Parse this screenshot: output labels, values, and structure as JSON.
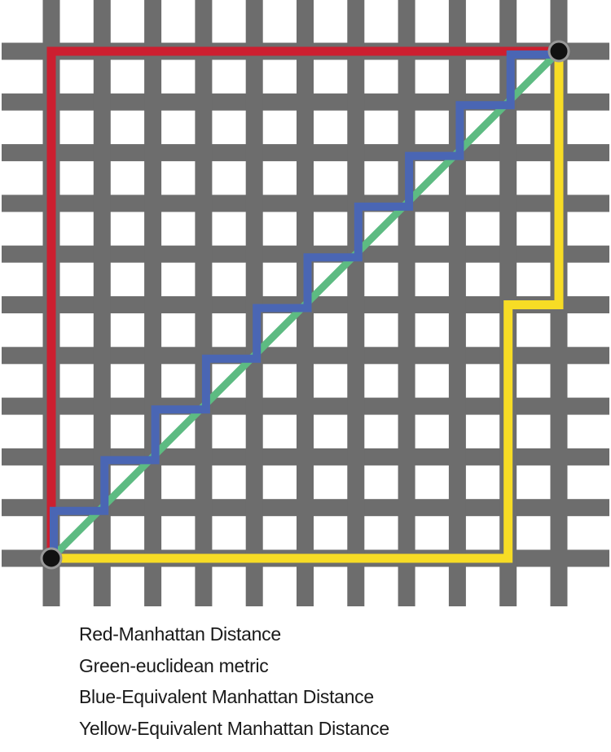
{
  "diagram": {
    "grid_cells": 10,
    "colors": {
      "grid": "#6d6d6d",
      "red": "#cc1f30",
      "green": "#5dbb82",
      "blue": "#4a66b4",
      "yellow": "#f7dc25",
      "endpoint": "#111111"
    }
  },
  "legend": [
    {
      "label": "Red-Manhattan Distance"
    },
    {
      "label": "Green-euclidean metric"
    },
    {
      "label": "Blue-Equivalent Manhattan Distance"
    },
    {
      "label": "Yellow-Equivalent Manhattan Distance"
    }
  ]
}
